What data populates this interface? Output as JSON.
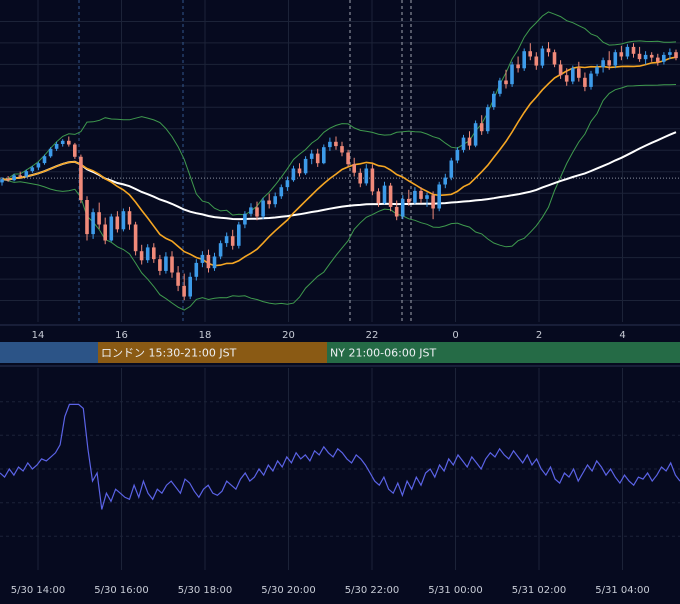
{
  "chart_data": [
    {
      "type": "candlestick",
      "panel": "price",
      "x_ticks": [
        "14",
        "16",
        "18",
        "20",
        "22",
        "0",
        "2",
        "4"
      ],
      "indicators": {
        "bollinger_bands": {
          "color": "#3f9a4e"
        },
        "moving_average_short": {
          "color": "#f5a623"
        },
        "moving_average_long": {
          "color": "#ffffff"
        }
      },
      "candle_colors": {
        "up": "#3d9be9",
        "down": "#f08a7a"
      },
      "candles": [
        [
          100,
          101,
          99.4,
          100.6
        ],
        [
          100.6,
          101.2,
          100.1,
          100.4
        ],
        [
          100.4,
          101.6,
          100.2,
          101.3
        ],
        [
          101.3,
          102,
          100.9,
          101.1
        ],
        [
          101.1,
          102.4,
          100.9,
          102.1
        ],
        [
          102.1,
          103.1,
          101.8,
          102.8
        ],
        [
          102.8,
          103.9,
          102.3,
          103.6
        ],
        [
          103.6,
          105.2,
          103.3,
          104.9
        ],
        [
          104.9,
          106.6,
          104.6,
          106.3
        ],
        [
          106.3,
          107.6,
          105.9,
          107.2
        ],
        [
          107.2,
          108.1,
          106.7,
          107.8
        ],
        [
          107.8,
          108.6,
          106.7,
          107.1
        ],
        [
          107.1,
          107.4,
          104.4,
          104.8
        ],
        [
          104.8,
          105.2,
          96.1,
          96.7
        ],
        [
          96.7,
          97.4,
          89.1,
          90.3
        ],
        [
          90.3,
          95.1,
          89.4,
          94.4
        ],
        [
          94.4,
          96.2,
          91.3,
          92.1
        ],
        [
          92.1,
          93.4,
          88.4,
          89.1
        ],
        [
          89.1,
          94.1,
          88.9,
          93.6
        ],
        [
          93.6,
          94.6,
          90.6,
          91.2
        ],
        [
          91.2,
          95.1,
          90.8,
          94.6
        ],
        [
          94.6,
          95.4,
          91.1,
          92.1
        ],
        [
          92.1,
          92.6,
          86.3,
          87.1
        ],
        [
          87.1,
          88.3,
          84.6,
          85.4
        ],
        [
          85.4,
          88.4,
          84.9,
          87.8
        ],
        [
          87.8,
          88.6,
          84.9,
          85.6
        ],
        [
          85.6,
          86.4,
          82.6,
          83.4
        ],
        [
          83.4,
          86.9,
          82.9,
          86.1
        ],
        [
          86.1,
          87.1,
          82.1,
          83.1
        ],
        [
          83.1,
          84.3,
          79.6,
          80.6
        ],
        [
          80.6,
          82.9,
          77.9,
          78.6
        ],
        [
          78.6,
          83.1,
          78.1,
          82.3
        ],
        [
          82.3,
          85.6,
          81.6,
          84.9
        ],
        [
          84.9,
          87.1,
          84.1,
          86.4
        ],
        [
          86.4,
          87.4,
          83.1,
          83.9
        ],
        [
          83.9,
          86.8,
          83.4,
          86.1
        ],
        [
          86.1,
          89.1,
          85.6,
          88.6
        ],
        [
          88.6,
          90.6,
          87.9,
          89.9
        ],
        [
          89.9,
          91.1,
          87.4,
          88.1
        ],
        [
          88.1,
          92.6,
          87.6,
          92.1
        ],
        [
          92.1,
          94.6,
          91.4,
          94.1
        ],
        [
          94.1,
          96.1,
          93.6,
          95.3
        ],
        [
          95.3,
          96.4,
          92.9,
          93.6
        ],
        [
          93.6,
          97.1,
          93.1,
          96.6
        ],
        [
          96.6,
          97.9,
          95.1,
          95.9
        ],
        [
          95.9,
          98.1,
          95.3,
          97.4
        ],
        [
          97.4,
          99.6,
          96.9,
          99.1
        ],
        [
          99.1,
          101.1,
          98.4,
          100.4
        ],
        [
          100.4,
          103.1,
          100.1,
          102.6
        ],
        [
          102.6,
          103.6,
          101.1,
          101.7
        ],
        [
          101.7,
          104.9,
          101.4,
          104.4
        ],
        [
          104.4,
          106.1,
          103.4,
          105.4
        ],
        [
          105.4,
          106.3,
          102.9,
          103.6
        ],
        [
          103.6,
          107.1,
          103.4,
          106.6
        ],
        [
          106.6,
          108.4,
          105.9,
          107.6
        ],
        [
          107.6,
          108.6,
          106.1,
          106.8
        ],
        [
          106.8,
          107.6,
          104.9,
          105.6
        ],
        [
          105.6,
          106.1,
          102.9,
          103.4
        ],
        [
          103.4,
          104.6,
          101.1,
          101.8
        ],
        [
          101.8,
          102.6,
          99.1,
          99.8
        ],
        [
          99.8,
          103.4,
          99.4,
          102.6
        ],
        [
          102.6,
          103.4,
          97.6,
          98.3
        ],
        [
          98.3,
          98.9,
          95.4,
          96.1
        ],
        [
          96.1,
          100.1,
          95.9,
          99.4
        ],
        [
          99.4,
          99.9,
          94.6,
          95.4
        ],
        [
          95.4,
          96.6,
          92.9,
          93.6
        ],
        [
          93.6,
          97.6,
          93.1,
          96.9
        ],
        [
          96.9,
          98.6,
          95.6,
          96.2
        ],
        [
          96.2,
          99.1,
          95.9,
          98.4
        ],
        [
          98.4,
          99.1,
          96.1,
          96.9
        ],
        [
          96.9,
          98.1,
          95.4,
          97.6
        ],
        [
          97.6,
          98.3,
          93.1,
          95.1
        ],
        [
          95.1,
          100.1,
          94.6,
          99.6
        ],
        [
          99.6,
          101.6,
          98.9,
          100.9
        ],
        [
          100.9,
          104.6,
          100.4,
          104.1
        ],
        [
          104.1,
          106.6,
          103.6,
          106.1
        ],
        [
          106.1,
          108.9,
          105.6,
          108.4
        ],
        [
          108.4,
          109.6,
          106.1,
          106.9
        ],
        [
          106.9,
          111.6,
          106.6,
          111.1
        ],
        [
          111.1,
          112.6,
          108.9,
          109.6
        ],
        [
          109.6,
          114.6,
          109.1,
          114.1
        ],
        [
          114.1,
          117.1,
          113.6,
          116.6
        ],
        [
          116.6,
          119.6,
          116.1,
          119.1
        ],
        [
          119.1,
          121.1,
          117.6,
          118.4
        ],
        [
          118.4,
          122.6,
          117.9,
          122.1
        ],
        [
          122.1,
          123.6,
          120.6,
          121.4
        ],
        [
          121.4,
          125.1,
          120.9,
          124.6
        ],
        [
          124.6,
          126.1,
          122.9,
          123.6
        ],
        [
          123.6,
          124.4,
          121.1,
          121.9
        ],
        [
          121.9,
          125.6,
          121.4,
          125.1
        ],
        [
          125.1,
          126.3,
          123.6,
          124.4
        ],
        [
          124.4,
          124.9,
          121.6,
          122.1
        ],
        [
          122.1,
          122.9,
          119.4,
          120.1
        ],
        [
          120.1,
          121.4,
          118.1,
          118.9
        ],
        [
          118.9,
          121.9,
          118.4,
          121.4
        ],
        [
          121.4,
          122.6,
          118.9,
          119.6
        ],
        [
          119.6,
          120.6,
          117.1,
          117.9
        ],
        [
          117.9,
          120.9,
          117.4,
          120.4
        ],
        [
          120.4,
          122.1,
          119.9,
          121.6
        ],
        [
          121.6,
          123.4,
          120.6,
          122.9
        ],
        [
          122.9,
          124.6,
          121.1,
          121.9
        ],
        [
          121.9,
          124.9,
          121.4,
          124.4
        ],
        [
          124.4,
          125.6,
          122.9,
          123.6
        ],
        [
          123.6,
          125.9,
          123.1,
          125.4
        ],
        [
          125.4,
          126.1,
          123.4,
          124.1
        ],
        [
          124.1,
          125.4,
          122.6,
          123.1
        ],
        [
          123.1,
          124.6,
          122.1,
          123.9
        ],
        [
          123.9,
          124.4,
          122.6,
          123.4
        ],
        [
          123.4,
          124.1,
          121.9,
          122.6
        ],
        [
          122.6,
          124.4,
          122.1,
          123.9
        ],
        [
          123.9,
          125.1,
          123.1,
          124.4
        ],
        [
          124.4,
          124.9,
          122.9,
          123.3
        ]
      ]
    },
    {
      "type": "line",
      "panel": "oscillator",
      "series": [
        {
          "color": "#5b63e6",
          "values": [
            48,
            46,
            50,
            47,
            51,
            49,
            53,
            50,
            52,
            55,
            54,
            56,
            58,
            62,
            76,
            82,
            82,
            82,
            80,
            60,
            44,
            48,
            30,
            38,
            34,
            40,
            38,
            36,
            35,
            42,
            36,
            44,
            38,
            35,
            40,
            38,
            42,
            44,
            41,
            38,
            45,
            43,
            39,
            36,
            40,
            42,
            38,
            37,
            39,
            44,
            42,
            40,
            45,
            48,
            44,
            46,
            50,
            47,
            52,
            49,
            54,
            51,
            56,
            53,
            58,
            55,
            57,
            54,
            59,
            57,
            61,
            58,
            56,
            60,
            58,
            55,
            53,
            57,
            55,
            52,
            48,
            44,
            42,
            46,
            40,
            38,
            43,
            37,
            44,
            40,
            46,
            42,
            48,
            50,
            46,
            52,
            49,
            55,
            52,
            57,
            54,
            51,
            56,
            53,
            50,
            55,
            58,
            56,
            60,
            57,
            55,
            59,
            56,
            53,
            57,
            52,
            55,
            50,
            47,
            51,
            45,
            43,
            48,
            46,
            50,
            44,
            48,
            52,
            49,
            54,
            51,
            47,
            50,
            46,
            43,
            47,
            44,
            42,
            46,
            45,
            48,
            44,
            47,
            51,
            49,
            53,
            47,
            44
          ]
        }
      ],
      "x_ticks": [
        "5/30 14:00",
        "5/30 16:00",
        "5/30 18:00",
        "5/30 20:00",
        "5/30 22:00",
        "5/31 00:00",
        "5/31 02:00",
        "5/31 04:00"
      ]
    }
  ],
  "sessions": [
    {
      "label": "",
      "color": "#2c5487"
    },
    {
      "label": "ロンドン 15:30-21:00 JST",
      "color": "#8a5a14"
    },
    {
      "label": "NY 21:00-06:00 JST",
      "color": "#256b46"
    }
  ],
  "colors": {
    "background": "#060a1f",
    "grid": "#1c2338",
    "axis_text": "#c8ccd6",
    "reference_line": "#c8ccd6"
  }
}
